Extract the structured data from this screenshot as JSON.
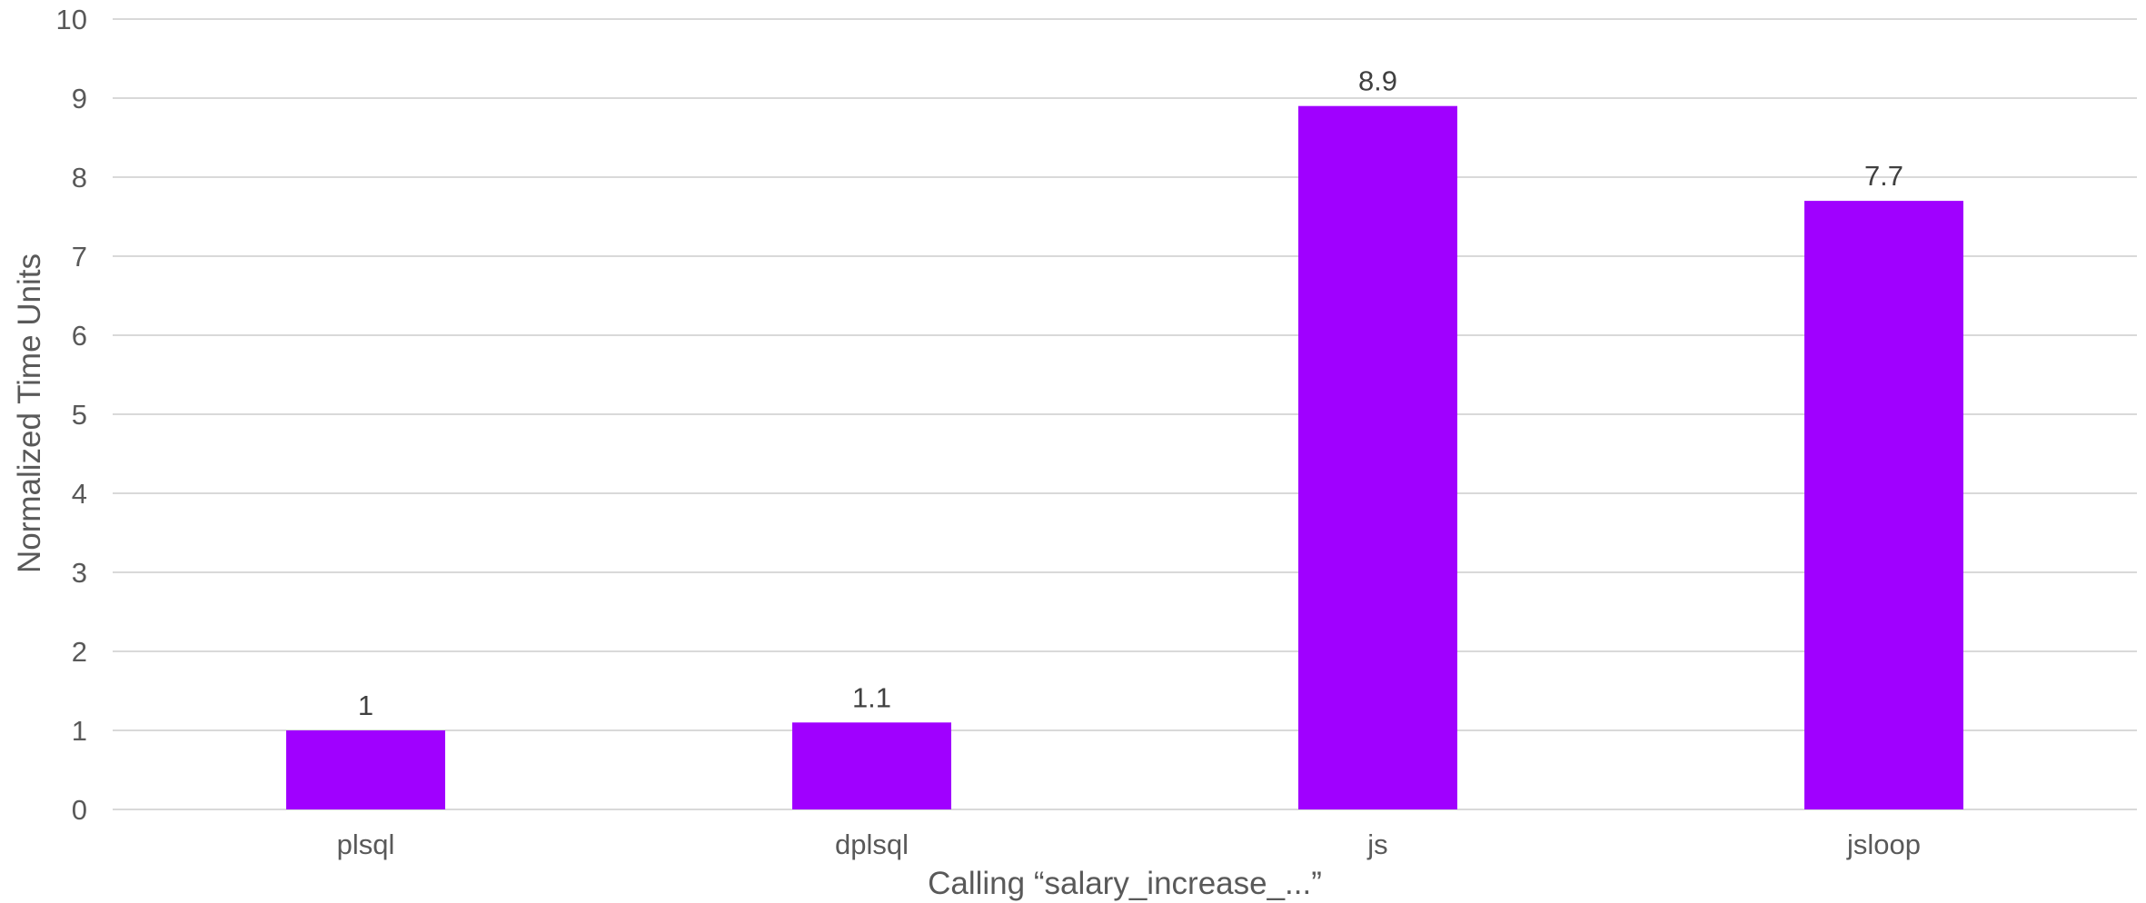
{
  "chart_data": {
    "type": "bar",
    "categories": [
      "plsql",
      "dplsql",
      "js",
      "jsloop"
    ],
    "values": [
      1,
      1.1,
      8.9,
      7.7
    ],
    "data_labels": [
      "1",
      "1.1",
      "8.9",
      "7.7"
    ],
    "xlabel": "Calling “salary_increase_...”",
    "ylabel": "Normalized Time Units",
    "ylim": [
      0,
      10
    ],
    "yticks": [
      0,
      1,
      2,
      3,
      4,
      5,
      6,
      7,
      8,
      9,
      10
    ],
    "grid": true,
    "legend": "none",
    "bar_color": "#A000FF"
  }
}
